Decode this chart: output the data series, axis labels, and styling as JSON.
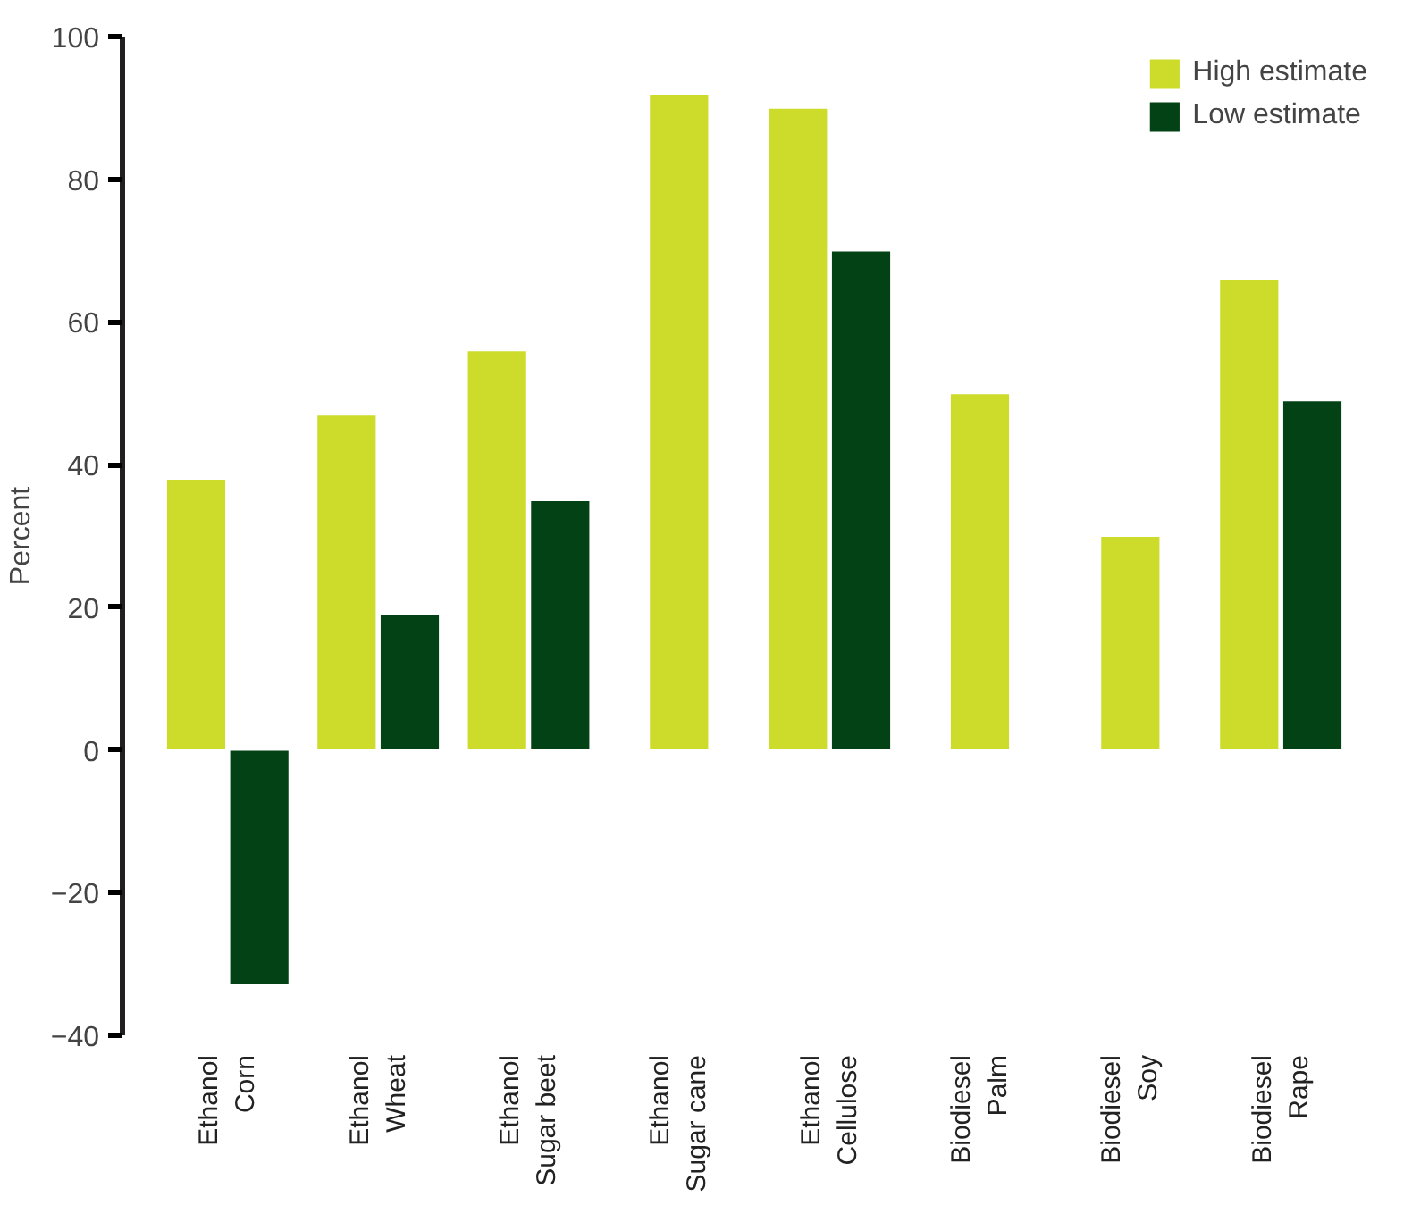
{
  "chart_data": {
    "type": "bar",
    "categories": [
      "Ethanol\nCorn",
      "Ethanol\nWheat",
      "Ethanol\nSugar beet",
      "Ethanol\nSugar cane",
      "Ethanol\nCellulose",
      "Biodiesel\nPalm",
      "Biodiesel\nSoy",
      "Biodiesel\nRape"
    ],
    "series": [
      {
        "name": "High estimate",
        "color": "#cddc2b",
        "values": [
          38,
          47,
          56,
          92,
          90,
          50,
          30,
          66
        ]
      },
      {
        "name": "Low estimate",
        "color": "#034215",
        "values": [
          -33,
          19,
          35,
          null,
          70,
          null,
          null,
          49
        ]
      }
    ],
    "ylabel": "Percent",
    "ylim": [
      -40,
      100
    ],
    "yticks": [
      -40,
      -20,
      0,
      20,
      40,
      60,
      80,
      100
    ],
    "grid": false,
    "legend": "top right"
  }
}
